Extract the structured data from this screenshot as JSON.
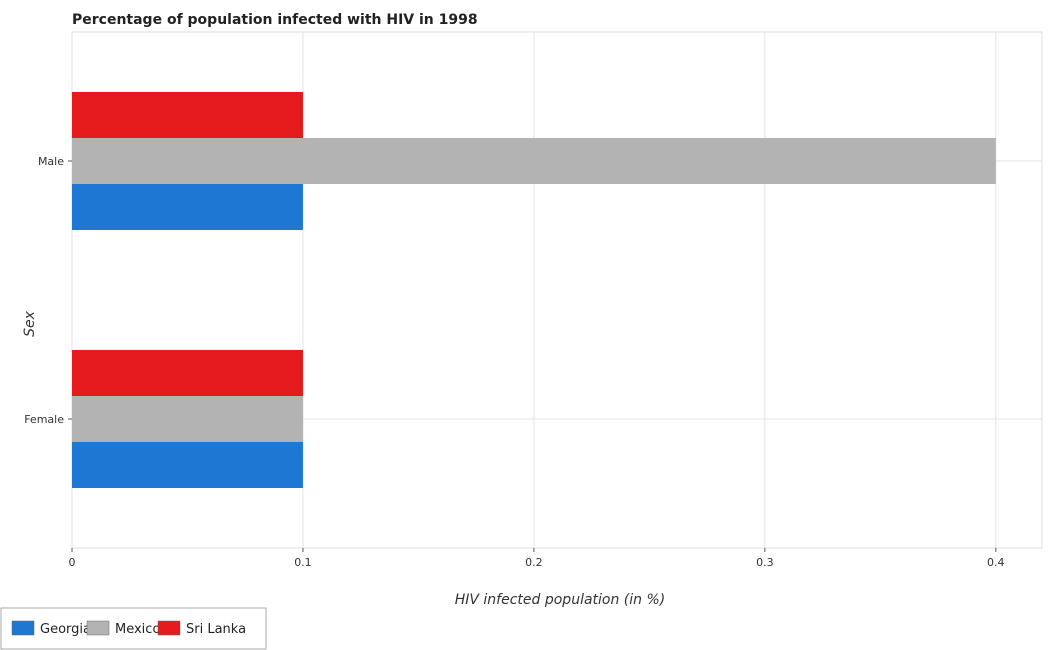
{
  "chart_data": {
    "type": "bar",
    "orientation": "horizontal",
    "title": "Percentage of population infected with HIV in 1998",
    "xlabel": "HIV infected population (in %)",
    "ylabel": "Sex",
    "categories": [
      "Female",
      "Male"
    ],
    "series": [
      {
        "name": "Georgia",
        "color": "#1f77d4",
        "values": [
          0.1,
          0.1
        ]
      },
      {
        "name": "Mexico",
        "color": "#b3b3b3",
        "values": [
          0.1,
          0.4
        ]
      },
      {
        "name": "Sri Lanka",
        "color": "#e41a1c",
        "values": [
          0.1,
          0.1
        ]
      }
    ],
    "xlim": [
      0,
      0.42
    ],
    "xticks": [
      0,
      0.1,
      0.2,
      0.3,
      0.4
    ],
    "xtick_labels": [
      "0",
      "0.1",
      "0.2",
      "0.3",
      "0.4"
    ],
    "grid": true,
    "legend_position": "bottom-left"
  }
}
